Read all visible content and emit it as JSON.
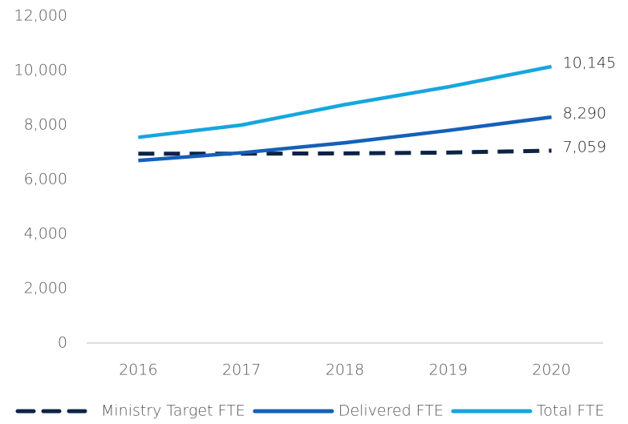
{
  "chart_data": {
    "type": "line",
    "categories": [
      "2016",
      "2017",
      "2018",
      "2019",
      "2020"
    ],
    "series": [
      {
        "name": "Ministry Target FTE",
        "color": "#0d2346",
        "dashed": true,
        "values": [
          6950,
          6950,
          6960,
          6990,
          7059
        ],
        "value_labels": [
          null,
          null,
          null,
          null,
          "7,059"
        ]
      },
      {
        "name": "Delivered FTE",
        "color": "#1560b8",
        "dashed": false,
        "values": [
          6700,
          6980,
          7350,
          7800,
          8290
        ],
        "value_labels": [
          null,
          null,
          null,
          null,
          "8,290"
        ]
      },
      {
        "name": "Total FTE",
        "color": "#16a6df",
        "dashed": false,
        "values": [
          7550,
          8000,
          8750,
          9400,
          10145
        ],
        "value_labels": [
          null,
          null,
          null,
          null,
          "10,145"
        ]
      }
    ],
    "ylim": [
      0,
      12000
    ],
    "yticks": [
      0,
      {
        "value": 2000,
        "label": "2,000"
      },
      {
        "value": 4000,
        "label": "4,000"
      },
      {
        "value": 6000,
        "label": "6,000"
      },
      {
        "value": 8000,
        "label": "8,000"
      },
      {
        "value": 10000,
        "label": "10,000"
      },
      {
        "value": 12000,
        "label": "12,000"
      }
    ],
    "grid": false,
    "legend": "bottom"
  }
}
